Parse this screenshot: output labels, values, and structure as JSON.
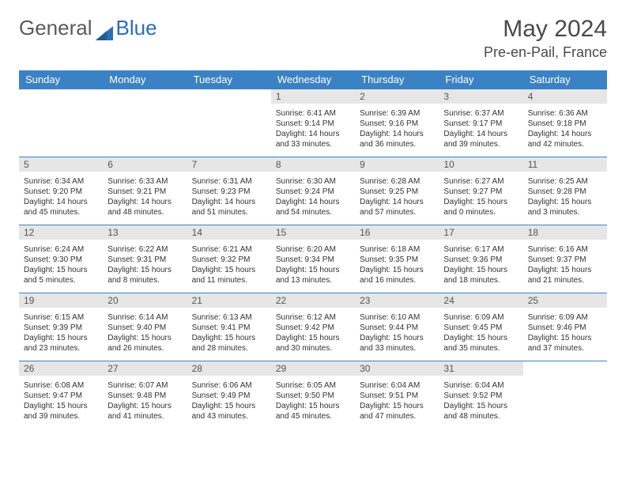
{
  "logo": {
    "text1": "General",
    "text2": "Blue"
  },
  "header": {
    "month": "May 2024",
    "location": "Pre-en-Pail, France"
  },
  "colors": {
    "header_bg": "#3b82c4",
    "header_text": "#ffffff",
    "border": "#3b82c4",
    "daynum_bg": "#e6e6e6",
    "daynum_text": "#555555",
    "body_text": "#333333",
    "logo_gray": "#5a5a5a",
    "logo_blue": "#2a6fb5"
  },
  "weekdays": [
    "Sunday",
    "Monday",
    "Tuesday",
    "Wednesday",
    "Thursday",
    "Friday",
    "Saturday"
  ],
  "blank_leading": 3,
  "days": [
    {
      "n": 1,
      "sr": "6:41 AM",
      "ss": "9:14 PM",
      "dl": "14 hours and 33 minutes."
    },
    {
      "n": 2,
      "sr": "6:39 AM",
      "ss": "9:16 PM",
      "dl": "14 hours and 36 minutes."
    },
    {
      "n": 3,
      "sr": "6:37 AM",
      "ss": "9:17 PM",
      "dl": "14 hours and 39 minutes."
    },
    {
      "n": 4,
      "sr": "6:36 AM",
      "ss": "9:18 PM",
      "dl": "14 hours and 42 minutes."
    },
    {
      "n": 5,
      "sr": "6:34 AM",
      "ss": "9:20 PM",
      "dl": "14 hours and 45 minutes."
    },
    {
      "n": 6,
      "sr": "6:33 AM",
      "ss": "9:21 PM",
      "dl": "14 hours and 48 minutes."
    },
    {
      "n": 7,
      "sr": "6:31 AM",
      "ss": "9:23 PM",
      "dl": "14 hours and 51 minutes."
    },
    {
      "n": 8,
      "sr": "6:30 AM",
      "ss": "9:24 PM",
      "dl": "14 hours and 54 minutes."
    },
    {
      "n": 9,
      "sr": "6:28 AM",
      "ss": "9:25 PM",
      "dl": "14 hours and 57 minutes."
    },
    {
      "n": 10,
      "sr": "6:27 AM",
      "ss": "9:27 PM",
      "dl": "15 hours and 0 minutes."
    },
    {
      "n": 11,
      "sr": "6:25 AM",
      "ss": "9:28 PM",
      "dl": "15 hours and 3 minutes."
    },
    {
      "n": 12,
      "sr": "6:24 AM",
      "ss": "9:30 PM",
      "dl": "15 hours and 5 minutes."
    },
    {
      "n": 13,
      "sr": "6:22 AM",
      "ss": "9:31 PM",
      "dl": "15 hours and 8 minutes."
    },
    {
      "n": 14,
      "sr": "6:21 AM",
      "ss": "9:32 PM",
      "dl": "15 hours and 11 minutes."
    },
    {
      "n": 15,
      "sr": "6:20 AM",
      "ss": "9:34 PM",
      "dl": "15 hours and 13 minutes."
    },
    {
      "n": 16,
      "sr": "6:18 AM",
      "ss": "9:35 PM",
      "dl": "15 hours and 16 minutes."
    },
    {
      "n": 17,
      "sr": "6:17 AM",
      "ss": "9:36 PM",
      "dl": "15 hours and 18 minutes."
    },
    {
      "n": 18,
      "sr": "6:16 AM",
      "ss": "9:37 PM",
      "dl": "15 hours and 21 minutes."
    },
    {
      "n": 19,
      "sr": "6:15 AM",
      "ss": "9:39 PM",
      "dl": "15 hours and 23 minutes."
    },
    {
      "n": 20,
      "sr": "6:14 AM",
      "ss": "9:40 PM",
      "dl": "15 hours and 26 minutes."
    },
    {
      "n": 21,
      "sr": "6:13 AM",
      "ss": "9:41 PM",
      "dl": "15 hours and 28 minutes."
    },
    {
      "n": 22,
      "sr": "6:12 AM",
      "ss": "9:42 PM",
      "dl": "15 hours and 30 minutes."
    },
    {
      "n": 23,
      "sr": "6:10 AM",
      "ss": "9:44 PM",
      "dl": "15 hours and 33 minutes."
    },
    {
      "n": 24,
      "sr": "6:09 AM",
      "ss": "9:45 PM",
      "dl": "15 hours and 35 minutes."
    },
    {
      "n": 25,
      "sr": "6:09 AM",
      "ss": "9:46 PM",
      "dl": "15 hours and 37 minutes."
    },
    {
      "n": 26,
      "sr": "6:08 AM",
      "ss": "9:47 PM",
      "dl": "15 hours and 39 minutes."
    },
    {
      "n": 27,
      "sr": "6:07 AM",
      "ss": "9:48 PM",
      "dl": "15 hours and 41 minutes."
    },
    {
      "n": 28,
      "sr": "6:06 AM",
      "ss": "9:49 PM",
      "dl": "15 hours and 43 minutes."
    },
    {
      "n": 29,
      "sr": "6:05 AM",
      "ss": "9:50 PM",
      "dl": "15 hours and 45 minutes."
    },
    {
      "n": 30,
      "sr": "6:04 AM",
      "ss": "9:51 PM",
      "dl": "15 hours and 47 minutes."
    },
    {
      "n": 31,
      "sr": "6:04 AM",
      "ss": "9:52 PM",
      "dl": "15 hours and 48 minutes."
    }
  ],
  "labels": {
    "sunrise": "Sunrise:",
    "sunset": "Sunset:",
    "daylight": "Daylight:"
  }
}
